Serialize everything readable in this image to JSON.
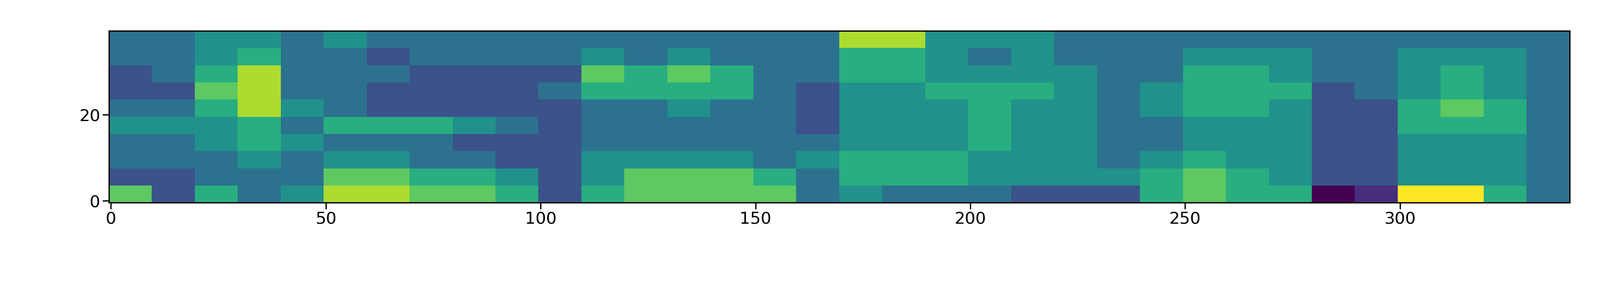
{
  "chart_data": {
    "type": "heatmap",
    "x_edges": [
      -0.5,
      9.5,
      19.5,
      29.5,
      39.5,
      49.5,
      59.5,
      69.5,
      79.5,
      89.5,
      99.5,
      109.5,
      119.5,
      129.5,
      139.5,
      149.5,
      159.5,
      169.5,
      179.5,
      189.5,
      199.5,
      209.5,
      219.5,
      229.5,
      239.5,
      249.5,
      259.5,
      269.5,
      279.5,
      289.5,
      299.5,
      309.5,
      319.5,
      329.5,
      339.5
    ],
    "y_edges": [
      -0.5,
      3.5,
      7.5,
      11.5,
      15.5,
      19.5,
      23.5,
      27.5,
      31.5,
      35.5,
      39.5
    ],
    "cells_by_column": [
      [
        7,
        3,
        4,
        4,
        5,
        4,
        3,
        3,
        4,
        4
      ],
      [
        3,
        3,
        4,
        4,
        5,
        4,
        3,
        4,
        4,
        4
      ],
      [
        6,
        4,
        4,
        5,
        5,
        6,
        7,
        6,
        5,
        5
      ],
      [
        4,
        4,
        5,
        6,
        6,
        8,
        8,
        8,
        6,
        5
      ],
      [
        5,
        4,
        4,
        5,
        4,
        5,
        4,
        4,
        4,
        4
      ],
      [
        8,
        7,
        5,
        4,
        6,
        4,
        4,
        4,
        4,
        5
      ],
      [
        8,
        7,
        5,
        4,
        6,
        3,
        3,
        4,
        3,
        4
      ],
      [
        7,
        6,
        4,
        4,
        6,
        3,
        3,
        3,
        4,
        4
      ],
      [
        7,
        6,
        4,
        3,
        5,
        3,
        3,
        3,
        4,
        4
      ],
      [
        6,
        5,
        3,
        3,
        4,
        3,
        3,
        3,
        4,
        4
      ],
      [
        3,
        3,
        3,
        3,
        3,
        3,
        4,
        3,
        4,
        4
      ],
      [
        6,
        5,
        5,
        4,
        4,
        4,
        6,
        7,
        5,
        4
      ],
      [
        7,
        7,
        5,
        4,
        4,
        4,
        6,
        6,
        4,
        4
      ],
      [
        7,
        7,
        5,
        4,
        4,
        5,
        6,
        7,
        5,
        4
      ],
      [
        7,
        7,
        5,
        4,
        4,
        4,
        6,
        6,
        4,
        4
      ],
      [
        7,
        6,
        4,
        4,
        4,
        4,
        4,
        4,
        4,
        4
      ],
      [
        4,
        4,
        5,
        4,
        3,
        3,
        3,
        4,
        4,
        4
      ],
      [
        5,
        6,
        6,
        5,
        5,
        5,
        5,
        6,
        6,
        8
      ],
      [
        4,
        6,
        6,
        5,
        5,
        5,
        5,
        6,
        6,
        8
      ],
      [
        4,
        6,
        6,
        5,
        5,
        5,
        6,
        5,
        5,
        5
      ],
      [
        4,
        5,
        5,
        6,
        6,
        6,
        6,
        5,
        4,
        5
      ],
      [
        3,
        5,
        5,
        5,
        5,
        5,
        6,
        5,
        5,
        5
      ],
      [
        3,
        5,
        5,
        5,
        5,
        5,
        5,
        5,
        4,
        4
      ],
      [
        3,
        5,
        4,
        4,
        4,
        4,
        4,
        4,
        4,
        4
      ],
      [
        6,
        6,
        5,
        4,
        4,
        5,
        5,
        4,
        4,
        4
      ],
      [
        7,
        7,
        6,
        5,
        5,
        6,
        6,
        6,
        5,
        4
      ],
      [
        6,
        6,
        5,
        5,
        5,
        6,
        6,
        6,
        5,
        4
      ],
      [
        6,
        5,
        5,
        5,
        5,
        5,
        6,
        5,
        5,
        4
      ],
      [
        1,
        3,
        3,
        3,
        3,
        3,
        3,
        4,
        4,
        4
      ],
      [
        2,
        3,
        3,
        3,
        3,
        3,
        4,
        4,
        4,
        4
      ],
      [
        9,
        5,
        5,
        5,
        6,
        6,
        5,
        5,
        5,
        4
      ],
      [
        9,
        5,
        5,
        5,
        6,
        7,
        6,
        6,
        5,
        4
      ],
      [
        6,
        5,
        5,
        5,
        6,
        6,
        5,
        5,
        5,
        4
      ],
      [
        4,
        4,
        4,
        4,
        4,
        4,
        4,
        4,
        4,
        4
      ]
    ],
    "xlim": [
      -0.5,
      339.5
    ],
    "ylim": [
      -0.5,
      39.5
    ],
    "xticks": [
      0,
      50,
      100,
      150,
      200,
      250,
      300
    ],
    "yticks": [
      0,
      20
    ]
  }
}
